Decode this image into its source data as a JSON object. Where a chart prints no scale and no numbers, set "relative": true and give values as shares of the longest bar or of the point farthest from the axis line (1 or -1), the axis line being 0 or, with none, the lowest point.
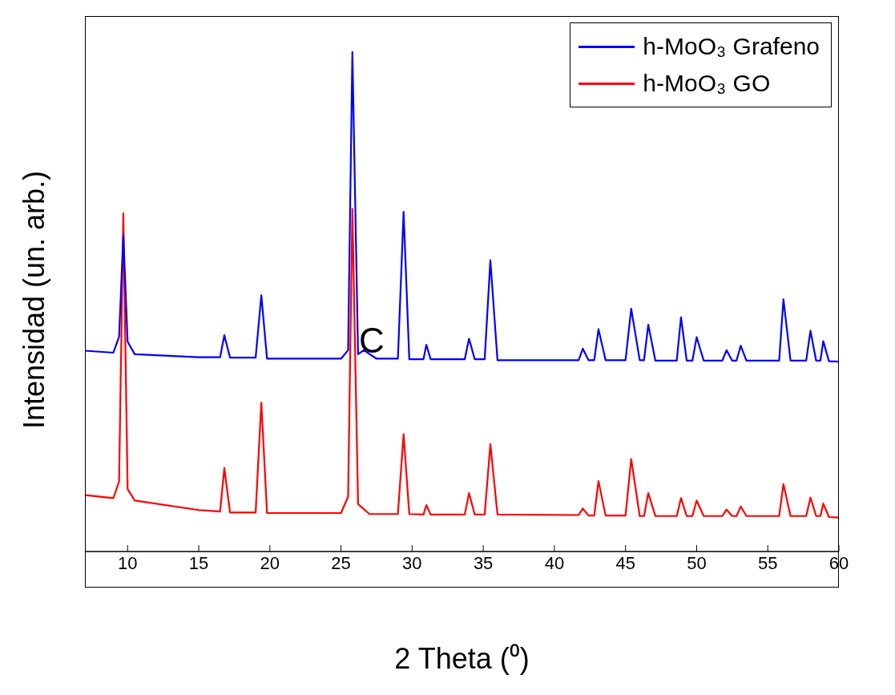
{
  "chart_data": {
    "type": "line",
    "xlabel": "2 Theta (⁰)",
    "ylabel": "Intensidad (un. arb.)",
    "relative": true,
    "xlim": [
      7,
      60
    ],
    "xticks": [
      10,
      15,
      20,
      25,
      30,
      35,
      40,
      45,
      50,
      55,
      60
    ],
    "grid": false,
    "legend": "top right",
    "marker": "none",
    "line_style": "solid",
    "annotations": [
      "C"
    ],
    "series": [
      {
        "name": "h-MoO₃ Grafeno",
        "color": "#0000ff",
        "x": [
          7,
          9,
          9.4,
          9.7,
          10,
          10.5,
          15,
          16.5,
          16.8,
          17.2,
          19,
          19.4,
          19.8,
          25,
          25.5,
          25.8,
          26.2,
          26.6,
          27.5,
          29,
          29.4,
          29.8,
          30.8,
          31,
          31.3,
          33.7,
          34,
          34.4,
          35.1,
          35.5,
          36,
          41.7,
          42,
          42.4,
          42.8,
          43.1,
          43.6,
          45,
          45.4,
          46,
          46.3,
          46.6,
          47.1,
          48.6,
          48.9,
          49.3,
          49.7,
          50,
          50.5,
          51.8,
          52.1,
          52.5,
          52.8,
          53.1,
          53.5,
          55.8,
          56.1,
          56.6,
          57.7,
          58,
          58.4,
          58.7,
          58.9,
          59.3,
          60
        ],
        "values": [
          0.402,
          0.398,
          0.43,
          0.633,
          0.42,
          0.395,
          0.389,
          0.389,
          0.433,
          0.388,
          0.388,
          0.513,
          0.386,
          0.386,
          0.403,
          1.0,
          0.395,
          0.403,
          0.386,
          0.386,
          0.68,
          0.385,
          0.385,
          0.414,
          0.385,
          0.385,
          0.426,
          0.385,
          0.385,
          0.583,
          0.383,
          0.383,
          0.406,
          0.383,
          0.383,
          0.445,
          0.383,
          0.383,
          0.486,
          0.383,
          0.383,
          0.454,
          0.382,
          0.382,
          0.469,
          0.382,
          0.382,
          0.429,
          0.382,
          0.382,
          0.403,
          0.382,
          0.382,
          0.412,
          0.382,
          0.382,
          0.505,
          0.382,
          0.382,
          0.442,
          0.382,
          0.382,
          0.421,
          0.381,
          0.38
        ]
      },
      {
        "name": "h-MoO₃ GO",
        "color": "#ff0000",
        "x": [
          7,
          9,
          9.4,
          9.7,
          10,
          10.5,
          15,
          16.5,
          16.8,
          17.2,
          19,
          19.4,
          19.8,
          25,
          25.5,
          25.8,
          26.2,
          27,
          29,
          29.4,
          29.8,
          30.8,
          31,
          31.3,
          33.7,
          34,
          34.4,
          35.1,
          35.5,
          36,
          41.7,
          42,
          42.4,
          42.8,
          43.1,
          43.6,
          45,
          45.4,
          46,
          46.3,
          46.6,
          47.1,
          48.6,
          48.9,
          49.3,
          49.7,
          50,
          50.5,
          51.8,
          52.1,
          52.5,
          52.8,
          53.1,
          53.5,
          55.8,
          56.1,
          56.6,
          57.7,
          58,
          58.4,
          58.7,
          58.9,
          59.3,
          60
        ],
        "values": [
          0.113,
          0.107,
          0.14,
          0.677,
          0.125,
          0.102,
          0.083,
          0.08,
          0.167,
          0.078,
          0.078,
          0.298,
          0.077,
          0.077,
          0.11,
          0.686,
          0.095,
          0.075,
          0.075,
          0.235,
          0.075,
          0.074,
          0.093,
          0.074,
          0.074,
          0.117,
          0.074,
          0.074,
          0.215,
          0.074,
          0.073,
          0.086,
          0.072,
          0.072,
          0.141,
          0.072,
          0.072,
          0.185,
          0.071,
          0.071,
          0.117,
          0.071,
          0.071,
          0.107,
          0.071,
          0.071,
          0.102,
          0.071,
          0.071,
          0.084,
          0.071,
          0.071,
          0.09,
          0.071,
          0.071,
          0.135,
          0.071,
          0.071,
          0.108,
          0.071,
          0.071,
          0.096,
          0.069,
          0.068
        ]
      }
    ]
  }
}
